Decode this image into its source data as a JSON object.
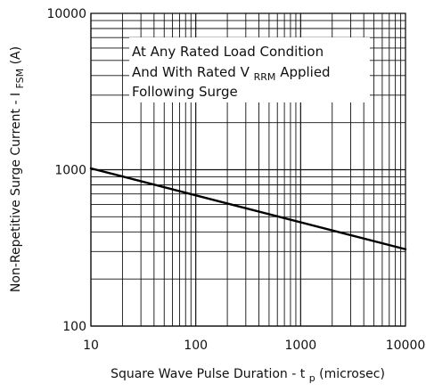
{
  "chart_data": {
    "type": "line",
    "x_scale": "log",
    "y_scale": "log",
    "xlim": [
      10,
      10000
    ],
    "ylim": [
      100,
      10000
    ],
    "x_ticks": [
      {
        "value": 10,
        "label": "10"
      },
      {
        "value": 100,
        "label": "100"
      },
      {
        "value": 1000,
        "label": "1000"
      },
      {
        "value": 10000,
        "label": "10000"
      }
    ],
    "y_ticks": [
      {
        "value": 100,
        "label": "100"
      },
      {
        "value": 1000,
        "label": "1000"
      },
      {
        "value": 10000,
        "label": "10000"
      }
    ],
    "xlabel": {
      "main": "Square Wave Pulse Duration - t",
      "subscript": "p",
      "suffix": " (microsec)"
    },
    "ylabel": {
      "main": "Non-Repetitive Surge Current - I",
      "subscript": "FSM",
      "suffix": " (A)"
    },
    "annotation": {
      "line1": "At Any Rated Load Condition",
      "line2_main": "And With Rated V",
      "line2_sub": "RRM",
      "line2_suffix": " Applied",
      "line3": "Following Surge"
    },
    "grid": "on",
    "series": [
      {
        "points": [
          {
            "x": 10,
            "y": 1020
          },
          {
            "x": 10000,
            "y": 310
          }
        ],
        "color": "#000000"
      }
    ]
  }
}
